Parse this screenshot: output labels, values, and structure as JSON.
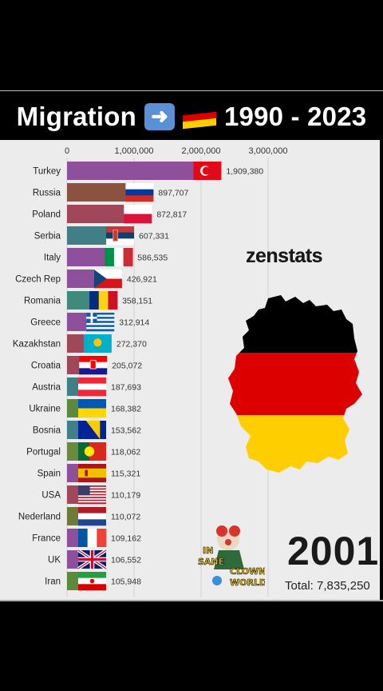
{
  "header": {
    "title_left": "Migration",
    "title_right": "1990 - 2023",
    "arrow_icon": "right-arrow-icon",
    "flag_icon": "germany-flag-icon"
  },
  "watermark": "zenstats",
  "year": "2001",
  "total": "Total: 7,835,250",
  "logo": {
    "line1": "IN",
    "line2": "SANE",
    "line3": "CLOWN",
    "line4": "WORLD"
  },
  "chart_data": {
    "type": "bar",
    "orientation": "horizontal",
    "categories": [
      "Turkey",
      "Russia",
      "Poland",
      "Serbia",
      "Italy",
      "Czech Rep",
      "Romania",
      "Greece",
      "Kazakhstan",
      "Croatia",
      "Austria",
      "Ukraine",
      "Bosnia",
      "Portugal",
      "Spain",
      "USA",
      "Nederland",
      "France",
      "UK",
      "Iran"
    ],
    "values": [
      1909380,
      897707,
      872817,
      607331,
      586535,
      426921,
      358151,
      312914,
      272370,
      205072,
      187693,
      168382,
      153562,
      118062,
      115321,
      110179,
      110072,
      109162,
      106552,
      105948
    ],
    "value_labels": [
      "1,909,380",
      "897,707",
      "872,817",
      "607,331",
      "586,535",
      "426,921",
      "358,151",
      "312,914",
      "272,370",
      "205,072",
      "187,693",
      "168,382",
      "153,562",
      "118,062",
      "115,321",
      "110,179",
      "110,072",
      "109,162",
      "106,552",
      "105,948"
    ],
    "bar_colors": [
      "#8e4f9b",
      "#8b5240",
      "#a0475a",
      "#3f7f85",
      "#8e4f9b",
      "#8e4f9b",
      "#3f8a7d",
      "#8e4f9b",
      "#a0475a",
      "#a0475a",
      "#3f7f85",
      "#5a8a3c",
      "#3f7f85",
      "#6b8a3f",
      "#8e4f9b",
      "#a0475a",
      "#6f7a3a",
      "#8e4f9b",
      "#8e4f9b",
      "#5a8a3c"
    ],
    "xticks": [
      0,
      1000000,
      2000000,
      3000000
    ],
    "xtick_labels": [
      "0",
      "1,000,000",
      "2,000,000",
      "3,000,000"
    ],
    "xlim": [
      0,
      3200000
    ],
    "grid": true
  },
  "colors": {
    "germany_black": "#000000",
    "germany_red": "#dd0000",
    "germany_gold": "#ffce00"
  }
}
